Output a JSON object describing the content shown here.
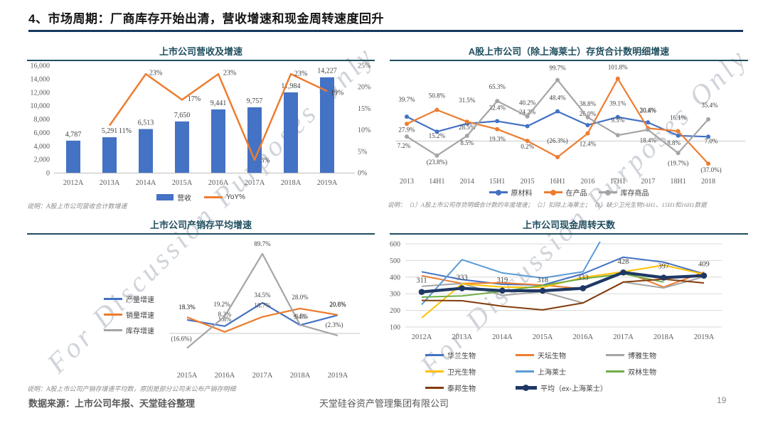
{
  "slide": {
    "title": "4、市场周期：厂商库存开始出清，营收增速和现金周转速度回升",
    "watermark": "For Discussion Purposes Only",
    "footer": {
      "source": "数据来源：上市公司年报、天堂硅谷整理",
      "company": "天堂硅谷资产管理集团有限公司",
      "page": "19"
    }
  },
  "chart_data": [
    {
      "id": "rev",
      "type": "bar",
      "title": "上市公司营收及增速",
      "note": "说明：A股上市公司营收合计数增速",
      "categories": [
        "2012A",
        "2013A",
        "2014A",
        "2015A",
        "2016A",
        "2017A",
        "2018A",
        "2019A"
      ],
      "left_axis": {
        "min": 0,
        "max": 16000,
        "labels": [
          "0",
          "2,000",
          "4,000",
          "6,000",
          "8,000",
          "10,000",
          "12,000",
          "14,000",
          "16,000"
        ]
      },
      "right_axis": {
        "min": 0,
        "max": 25,
        "labels": [
          "0%",
          "5%",
          "10%",
          "15%",
          "20%",
          "25%"
        ]
      },
      "bars": {
        "name": "营收",
        "color": "#4472C4",
        "values": [
          4787,
          5291,
          6513,
          7650,
          9441,
          9757,
          11984,
          14227
        ],
        "labels": [
          "4,787",
          "5,291",
          "6,513",
          "7,650",
          "9,441",
          "9,757",
          "11,984",
          "14,227"
        ]
      },
      "line": {
        "name": "YoY%",
        "color": "#ED7D31",
        "values": [
          null,
          11,
          23,
          17,
          23,
          3,
          23,
          19
        ],
        "labels": [
          null,
          "11%",
          "23%",
          "17%",
          "23%",
          "3%",
          "23%",
          "19%"
        ],
        "label_dx": [
          0,
          22,
          14,
          17,
          16,
          15,
          14,
          14
        ],
        "label_dy": [
          0,
          7,
          -2,
          -2,
          -2,
          0,
          -1,
          2
        ]
      },
      "legend": [
        {
          "label": "营收",
          "color": "#4472C4",
          "swatch": "rect"
        },
        {
          "label": "YoY%",
          "color": "#ED7D31",
          "swatch": "line"
        }
      ]
    },
    {
      "id": "inv",
      "type": "line",
      "title": "A股上市公司（除上海莱士）存货合计数明细增速",
      "note": "说明：（1）A股上市公司存货明细合计数的年度增速；（2）扣除上海莱士；（3）缺少卫光生物14H1、15H1和16H1数据",
      "categories": [
        "2013",
        "14H1",
        "2014",
        "15H1",
        "2015",
        "16H1",
        "2016",
        "17H1",
        "2017",
        "18H1",
        "2018"
      ],
      "ylim": [
        -60,
        120
      ],
      "series": [
        {
          "name": "原材料",
          "color": "#4472C4",
          "values": [
            39.7,
            15.2,
            28.5,
            32.4,
            24.2,
            48.4,
            26.0,
            39.1,
            30.4,
            8.8,
            7.0
          ],
          "labels": [
            "39.7%",
            "15.2%",
            "28.5%",
            "32.4%",
            "24.2%",
            "48.4%",
            "26.0%",
            "39.1%",
            "30.4%",
            "8.8%",
            "7.0%"
          ],
          "label_dx": [
            0,
            0,
            0,
            0,
            0,
            0,
            0,
            0,
            0,
            -6,
            4
          ],
          "label_dy": [
            -24,
            6,
            5,
            -19,
            -20,
            -19,
            -16,
            -19,
            -17,
            10,
            6
          ]
        },
        {
          "name": "在产品",
          "color": "#ED7D31",
          "values": [
            27.9,
            50.8,
            31.5,
            19.3,
            0.2,
            -26.3,
            12.4,
            101.8,
            20.8,
            16.1,
            -37.0
          ],
          "labels": [
            "27.9%",
            "50.8%",
            "31.5%",
            "19.3%",
            "0.2%",
            "(26.3%)",
            "12.4%",
            "101.8%",
            "20.8%",
            "16.1%",
            "(37.0%)"
          ],
          "label_dx": [
            0,
            0,
            0,
            0,
            0,
            0,
            0,
            0,
            0,
            0,
            4
          ],
          "label_dy": [
            8,
            -20,
            -30,
            14,
            8,
            -23,
            15,
            -16,
            -25,
            -19,
            9
          ]
        },
        {
          "name": "库存商品",
          "color": "#A5A5A5",
          "values": [
            7.2,
            -23.8,
            8.5,
            65.3,
            40.2,
            99.7,
            38.8,
            9.5,
            18.4,
            -19.7,
            35.4
          ],
          "labels": [
            "7.2%",
            "(23.8%)",
            "8.5%",
            "65.3%",
            "40.2%",
            "99.7%",
            "38.8%",
            "9.5%",
            "18.4%",
            "(19.7%)",
            "35.4%"
          ],
          "label_dx": [
            -4,
            0,
            0,
            0,
            0,
            0,
            0,
            0,
            0,
            0,
            2
          ],
          "label_dy": [
            13,
            9,
            10,
            -20,
            -19,
            -17,
            -19,
            -21,
            15,
            14,
            -20
          ]
        }
      ],
      "legend": [
        {
          "label": "原材料",
          "color": "#4472C4",
          "swatch": "line-dot"
        },
        {
          "label": "在产品",
          "color": "#ED7D31",
          "swatch": "line-dot"
        },
        {
          "label": "库存商品",
          "color": "#A5A5A5",
          "swatch": "line-dot"
        }
      ]
    },
    {
      "id": "psi",
      "type": "line",
      "title": "上市公司产销存平均增速",
      "note": "说明：A股上市公司产销存增速平均数，原因是部分公司未公布产销存明细",
      "categories": [
        "2015A",
        "2016A",
        "2017A",
        "2018A",
        "2019A"
      ],
      "ylim": [
        -45,
        100
      ],
      "series": [
        {
          "name": "产量增速",
          "color": "#4472C4",
          "values": [
            15.3,
            8.2,
            34.5,
            9.4,
            20.6
          ],
          "labels": [
            "15.3%",
            "8.2%",
            "34.5%",
            "9.4%",
            "20.6%"
          ],
          "label_dx": [
            0,
            0,
            0,
            0,
            0
          ],
          "label_dy": [
            -18,
            -17,
            -11,
            -12,
            -15
          ]
        },
        {
          "name": "销量增速",
          "color": "#ED7D31",
          "values": [
            18.3,
            1.8,
            18.7,
            28.0,
            20.8
          ],
          "labels": [
            "18.3%",
            "1.8%",
            "18.7%",
            "28.0%",
            "20.8%"
          ],
          "label_dx": [
            0,
            0,
            0,
            0,
            0
          ],
          "label_dy": [
            -14,
            -18,
            -16,
            -16,
            -15
          ]
        },
        {
          "name": "库存增速",
          "color": "#A5A5A5",
          "values": [
            -16.6,
            19.2,
            89.7,
            9.5,
            -2.3
          ],
          "labels": [
            "(16.6%)",
            "19.2%",
            "89.7%",
            "9.5%",
            "(2.3%)"
          ],
          "label_dx": [
            -8,
            -4,
            0,
            2,
            -5
          ],
          "label_dy": [
            -13,
            -17,
            -14,
            -12,
            -15
          ]
        }
      ],
      "legend": [
        {
          "label": "产量增速",
          "color": "#4472C4",
          "swatch": "line"
        },
        {
          "label": "销量增速",
          "color": "#ED7D31",
          "swatch": "line"
        },
        {
          "label": "库存增速",
          "color": "#A5A5A5",
          "swatch": "line"
        }
      ]
    },
    {
      "id": "cash",
      "type": "line",
      "title": "上市公司现金周转天数",
      "categories": [
        "2012A",
        "2013A",
        "2014A",
        "2015A",
        "2016A",
        "2017A",
        "2018A",
        "2019A"
      ],
      "ylim": [
        100,
        600
      ],
      "y_axis_labels": [
        "600",
        "500",
        "400",
        "300",
        "200",
        "100"
      ],
      "series": [
        {
          "name": "华兰生物",
          "color": "#4472C4",
          "values": [
            432,
            385,
            357,
            352,
            420,
            520,
            490,
            420
          ]
        },
        {
          "name": "天坛生物",
          "color": "#ED7D31",
          "values": [
            408,
            362,
            366,
            352,
            330,
            435,
            340,
            430
          ]
        },
        {
          "name": "博雅生物",
          "color": "#A5A5A5",
          "values": [
            345,
            362,
            290,
            312,
            245,
            370,
            335,
            402
          ]
        },
        {
          "name": "卫光生物",
          "color": "#FFC000",
          "values": [
            155,
            360,
            340,
            338,
            398,
            432,
            472,
            418
          ]
        },
        {
          "name": "上海莱士",
          "color": "#5B9BD5",
          "values": [
            235,
            505,
            425,
            395,
            432,
            860,
            null,
            null
          ]
        },
        {
          "name": "双林生物",
          "color": "#70AD47",
          "values": [
            280,
            287,
            315,
            350,
            390,
            420,
            370,
            null
          ]
        },
        {
          "name": "泰邦生物",
          "color": "#843C0C",
          "values": [
            260,
            258,
            225,
            203,
            245,
            370,
            388,
            365
          ]
        },
        {
          "name": "平均（ex-上海莱士）",
          "color": "#1F3864",
          "thick": true,
          "values": [
            311,
            333,
            319,
            318,
            333,
            428,
            397,
            409
          ],
          "labels": [
            "311",
            "333",
            "319",
            "318",
            "333",
            "428",
            "397",
            "409"
          ],
          "label_dx": [
            0,
            0,
            0,
            0,
            0,
            0,
            0,
            0
          ],
          "label_dy": [
            -16,
            -15,
            -15,
            -15,
            -15,
            -15,
            -16,
            -16
          ]
        }
      ],
      "legend": [
        {
          "label": "华兰生物",
          "color": "#4472C4",
          "swatch": "line"
        },
        {
          "label": "天坛生物",
          "color": "#ED7D31",
          "swatch": "line"
        },
        {
          "label": "博雅生物",
          "color": "#A5A5A5",
          "swatch": "line"
        },
        {
          "label": "卫光生物",
          "color": "#FFC000",
          "swatch": "line"
        },
        {
          "label": "上海莱士",
          "color": "#5B9BD5",
          "swatch": "line"
        },
        {
          "label": "双林生物",
          "color": "#70AD47",
          "swatch": "line"
        },
        {
          "label": "泰邦生物",
          "color": "#843C0C",
          "swatch": "line"
        },
        {
          "label": "平均（ex-上海莱士）",
          "color": "#1F3864",
          "swatch": "line-thick-dot"
        }
      ]
    }
  ]
}
